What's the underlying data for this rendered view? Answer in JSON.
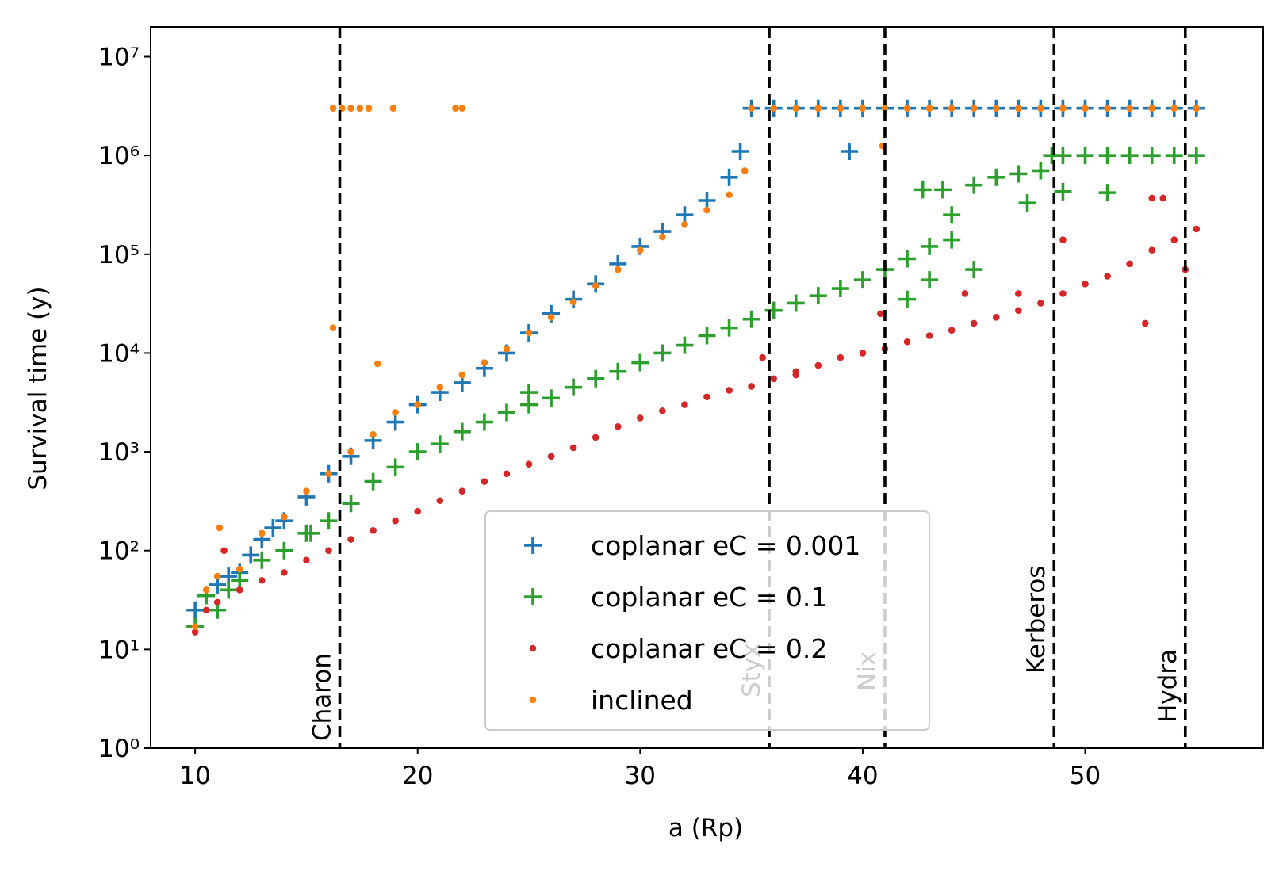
{
  "chart_data": {
    "type": "scatter",
    "xlabel": "a (Rp)",
    "ylabel": "Survival time (y)",
    "xlim": [
      8,
      58
    ],
    "xticks": [
      10,
      20,
      30,
      40,
      50
    ],
    "ylim": [
      1,
      20000000
    ],
    "yscale": "log",
    "yticks": [
      {
        "value": 1,
        "label": "10⁰"
      },
      {
        "value": 10,
        "label": "10¹"
      },
      {
        "value": 100,
        "label": "10²"
      },
      {
        "value": 1000,
        "label": "10³"
      },
      {
        "value": 10000,
        "label": "10⁴"
      },
      {
        "value": 100000,
        "label": "10⁵"
      },
      {
        "value": 1000000,
        "label": "10⁶"
      },
      {
        "value": 10000000,
        "label": "10⁷"
      }
    ],
    "legend": "lower center",
    "vlines": [
      {
        "x": 16.5,
        "label": "Charon"
      },
      {
        "x": 35.8,
        "label": "Styx"
      },
      {
        "x": 41.0,
        "label": "Nix"
      },
      {
        "x": 48.6,
        "label": "Kerberos"
      },
      {
        "x": 54.5,
        "label": "Hydra"
      }
    ],
    "series": [
      {
        "name": "coplanar eC = 0.001",
        "color": "#1f77b4",
        "marker": "+",
        "x": [
          10,
          10.5,
          11,
          11.5,
          12,
          12.5,
          13,
          13.5,
          14,
          15,
          16,
          17,
          18,
          19,
          20,
          21,
          22,
          23,
          24,
          25,
          26,
          27,
          28,
          29,
          30,
          31,
          32,
          33,
          34,
          34.5,
          39.4,
          35,
          36,
          37,
          38,
          39,
          40,
          41,
          42,
          43,
          44,
          45,
          46,
          47,
          48,
          49,
          50,
          51,
          52,
          53,
          54,
          55
        ],
        "values": [
          25,
          35,
          45,
          55,
          60,
          90,
          130,
          170,
          200,
          350,
          600,
          900,
          1300,
          2000,
          3000,
          4000,
          5000,
          7000,
          10000,
          16000,
          25000,
          35000,
          50000,
          80000,
          120000,
          170000,
          250000,
          350000,
          600000,
          1100000,
          1100000,
          3000000,
          3000000,
          3000000,
          3000000,
          3000000,
          3000000,
          3000000,
          3000000,
          3000000,
          3000000,
          3000000,
          3000000,
          3000000,
          3000000,
          3000000,
          3000000,
          3000000,
          3000000,
          3000000,
          3000000,
          3000000
        ]
      },
      {
        "name": "coplanar eC = 0.1",
        "color": "#2ca02c",
        "marker": "+",
        "x": [
          10,
          10.5,
          11,
          11.5,
          12,
          13,
          14,
          15,
          16,
          17,
          18,
          19,
          20,
          21,
          22,
          23,
          24,
          25,
          26,
          27,
          28,
          29,
          30,
          31,
          32,
          33,
          34,
          35,
          36,
          37,
          38,
          39,
          40,
          41,
          42,
          43,
          44,
          45,
          42,
          43,
          42.7,
          43.6,
          44,
          45,
          46,
          47,
          48,
          48.5,
          47.4,
          49,
          51,
          15.2,
          25,
          49,
          50,
          51,
          52,
          53,
          54,
          55
        ],
        "values": [
          17,
          35,
          25,
          40,
          50,
          80,
          100,
          150,
          200,
          300,
          500,
          700,
          1000,
          1200,
          1600,
          2000,
          2500,
          3000,
          3500,
          4500,
          5500,
          6500,
          8000,
          10000,
          12000,
          15000,
          18000,
          22000,
          27000,
          32000,
          38000,
          45000,
          55000,
          70000,
          90000,
          120000,
          140000,
          70000,
          35000,
          55000,
          450000,
          450000,
          250000,
          500000,
          600000,
          650000,
          700000,
          1000000,
          330000,
          430000,
          420000,
          150,
          4000,
          1000000,
          1000000,
          1000000,
          1000000,
          1000000,
          1000000,
          1000000
        ]
      },
      {
        "name": "coplanar eC = 0.2",
        "color": "#d62728",
        "marker": "o",
        "x": [
          10,
          10.5,
          11,
          12,
          13,
          14,
          15,
          16,
          17,
          18,
          19,
          20,
          21,
          22,
          23,
          24,
          25,
          26,
          27,
          28,
          29,
          30,
          31,
          32,
          33,
          34,
          35,
          36,
          37,
          38,
          39,
          40,
          41,
          42,
          43,
          44,
          45,
          46,
          47,
          48,
          49,
          50,
          51,
          52,
          53,
          54,
          55,
          11.3,
          35.5,
          37,
          40.8,
          44.6,
          47,
          49,
          53,
          53.5,
          52.7,
          54.5
        ],
        "values": [
          15,
          25,
          30,
          40,
          50,
          60,
          80,
          100,
          130,
          160,
          200,
          250,
          320,
          400,
          500,
          600,
          750,
          900,
          1100,
          1400,
          1800,
          2200,
          2600,
          3000,
          3600,
          4200,
          4600,
          5500,
          6500,
          7500,
          9000,
          10000,
          11000,
          13000,
          15000,
          17000,
          20000,
          23000,
          27000,
          32000,
          40000,
          50000,
          60000,
          80000,
          110000,
          140000,
          180000,
          100,
          9000,
          6000,
          25000,
          40000,
          40000,
          140000,
          370000,
          370000,
          20000,
          70000
        ]
      },
      {
        "name": "inclined",
        "color": "#ff7f0e",
        "marker": "o",
        "x": [
          10,
          10.5,
          11,
          12,
          13,
          14,
          15,
          16,
          17,
          18,
          19,
          20,
          21,
          22,
          23,
          24,
          25,
          26,
          27,
          28,
          29,
          30,
          31,
          32,
          33,
          34,
          34.7,
          11.1,
          16.2,
          18.2,
          40.9,
          16.2,
          16.6,
          17,
          17.4,
          17.8,
          18.9,
          21.7,
          22,
          35,
          36,
          37,
          38,
          39,
          40,
          41,
          42,
          43,
          44,
          45,
          46,
          47,
          48,
          49,
          50,
          51,
          52,
          53,
          54,
          55
        ],
        "values": [
          17,
          40,
          55,
          65,
          150,
          220,
          400,
          600,
          1000,
          1500,
          2500,
          3000,
          4500,
          6000,
          8000,
          11000,
          16000,
          23000,
          33000,
          48000,
          70000,
          110000,
          150000,
          200000,
          280000,
          400000,
          700000,
          170,
          18000,
          7800,
          1250000,
          3000000,
          3000000,
          3000000,
          3000000,
          3000000,
          3000000,
          3000000,
          3000000,
          3000000,
          3000000,
          3000000,
          3000000,
          3000000,
          3000000,
          3000000,
          3000000,
          3000000,
          3000000,
          3000000,
          3000000,
          3000000,
          3000000,
          3000000,
          3000000,
          3000000,
          3000000,
          3000000,
          3000000,
          3000000
        ]
      }
    ]
  }
}
